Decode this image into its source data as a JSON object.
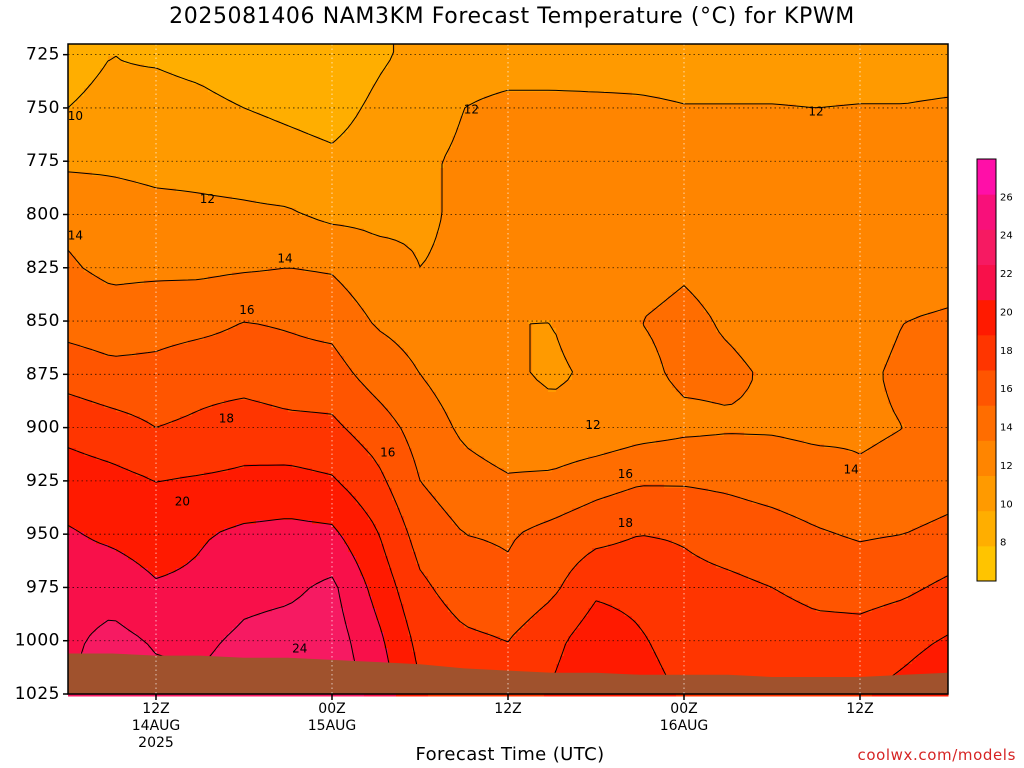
{
  "page": {
    "title": "2025081406 NAM3KM Forecast Temperature (°C) for KPWM",
    "watermark": "coolwx.com/models"
  },
  "chart_data": {
    "type": "heatmap",
    "title": "2025081406 NAM3KM Forecast Temperature (°C) for KPWM",
    "xlabel": "Forecast Time (UTC)",
    "ylabel": "",
    "y_scale": "pressure (hPa), inverted",
    "ylim": [
      1025,
      720
    ],
    "yticks": [
      725,
      750,
      775,
      800,
      825,
      850,
      875,
      900,
      925,
      950,
      975,
      1000,
      1025
    ],
    "x_unit": "forecast hour from 2025-08-14 06Z",
    "xlim": [
      0,
      60
    ],
    "xticks": [
      {
        "hour": 6,
        "lines": [
          "12Z",
          "14AUG",
          "2025"
        ]
      },
      {
        "hour": 18,
        "lines": [
          "00Z",
          "15AUG"
        ]
      },
      {
        "hour": 30,
        "lines": [
          "12Z"
        ]
      },
      {
        "hour": 42,
        "lines": [
          "00Z",
          "16AUG"
        ]
      },
      {
        "hour": 54,
        "lines": [
          "12Z"
        ]
      }
    ],
    "grid": true,
    "colorbar": {
      "levels": [
        6,
        8,
        10,
        12,
        14,
        16,
        18,
        20,
        22,
        24,
        26,
        28
      ],
      "labels": [
        8,
        10,
        12,
        14,
        16,
        18,
        20,
        22,
        24,
        26
      ],
      "colors": [
        "#ffc400",
        "#ffae00",
        "#ff9a00",
        "#ff8500",
        "#ff6d00",
        "#ff5500",
        "#ff3500",
        "#ff1a00",
        "#f8104a",
        "#f61a62",
        "#f8107a",
        "#ff0fa8"
      ]
    },
    "hours": [
      0,
      3,
      6,
      9,
      12,
      15,
      18,
      21,
      24,
      27,
      30,
      33,
      36,
      39,
      42,
      45,
      48,
      51,
      54,
      57,
      60
    ],
    "pressure_levels": [
      725,
      750,
      775,
      800,
      825,
      850,
      875,
      900,
      925,
      950,
      975,
      1000,
      1025
    ],
    "temperature_c": [
      [
        9.6,
        10,
        9.8,
        9.5,
        9,
        8.6,
        8.2,
        9.6,
        10.6,
        11.2,
        11.2,
        10.8,
        10.6,
        10.8,
        10.8,
        10.8,
        10.8,
        10.8,
        10.8,
        10.8,
        10.8
      ],
      [
        10,
        10.3,
        10.6,
        10.4,
        10,
        9.6,
        9.2,
        10.4,
        11.4,
        12,
        12.4,
        12.6,
        12.6,
        12.4,
        12.1,
        12.1,
        12.1,
        12,
        12.1,
        12.1,
        12.3
      ],
      [
        11.6,
        11.6,
        11.4,
        11.4,
        11.2,
        10.8,
        10.4,
        11,
        11.8,
        12.2,
        12.8,
        13.2,
        13,
        12.8,
        12.6,
        12.6,
        12.8,
        12.9,
        12.9,
        12.9,
        12.9
      ],
      [
        13.6,
        13,
        12.6,
        12.4,
        12.3,
        12.2,
        11.6,
        11.6,
        11.8,
        12.2,
        12.6,
        12.6,
        12.8,
        13,
        12.8,
        12.8,
        13.2,
        13.2,
        13.2,
        13.2,
        13.4
      ],
      [
        14.2,
        13.6,
        13.6,
        13.6,
        13.8,
        14,
        13.8,
        12.6,
        12,
        12.2,
        12.4,
        12.6,
        12.8,
        13.4,
        13.8,
        13.4,
        13,
        13,
        13,
        13.2,
        13.4
      ],
      [
        15.2,
        14.8,
        15.2,
        15.4,
        16,
        15.8,
        15.4,
        13.8,
        13.2,
        12.4,
        12,
        12,
        12.6,
        14,
        14.4,
        13.8,
        13.4,
        13.4,
        13.6,
        14,
        14.2
      ],
      [
        17.2,
        16.6,
        16.6,
        17.2,
        17.2,
        16.8,
        16.8,
        15.2,
        14,
        12.8,
        12.2,
        11.8,
        12.2,
        13.6,
        14.3,
        14.3,
        13.8,
        13.8,
        13.8,
        14.2,
        14.4
      ],
      [
        19.4,
        18.8,
        18,
        18.4,
        19,
        18.6,
        18.4,
        17,
        15.2,
        13.6,
        12.8,
        12.4,
        12.6,
        13.2,
        13.6,
        13.8,
        13.8,
        13.6,
        13.8,
        14,
        14.4
      ],
      [
        21,
        20.6,
        20,
        20.2,
        20.4,
        20.6,
        20.2,
        18.6,
        16,
        14.8,
        14.2,
        14.4,
        15.2,
        15.8,
        15.8,
        15.6,
        15.2,
        14.8,
        14.2,
        14.4,
        15
      ],
      [
        22.2,
        21.6,
        21,
        21.8,
        22.4,
        22.6,
        22.4,
        20.2,
        17.2,
        16,
        15.8,
        16.6,
        17.4,
        18,
        17.8,
        17.2,
        16.8,
        16.2,
        15.8,
        16,
        16.6
      ],
      [
        23,
        23.2,
        22.2,
        22.4,
        23.4,
        23.6,
        24.4,
        21.4,
        18.4,
        17,
        16.4,
        17.6,
        19.6,
        19.4,
        18.6,
        18.4,
        18,
        17.4,
        17.2,
        17.6,
        18.4
      ],
      [
        23.6,
        24.6,
        23.8,
        23.6,
        24.4,
        24.8,
        25,
        22.6,
        19.4,
        18.4,
        18,
        19.4,
        21.2,
        20.2,
        19.2,
        19.2,
        19.2,
        18.8,
        18.8,
        19.4,
        20.2
      ],
      [
        24,
        25,
        24.6,
        24.4,
        25,
        25.4,
        25.4,
        23.4,
        20.2,
        19.2,
        18.8,
        20.2,
        21.8,
        20.8,
        19.8,
        19.6,
        19.8,
        19.6,
        19.8,
        20.6,
        21.6
      ]
    ],
    "contour_labels": [
      {
        "hour": 0.5,
        "p": 754,
        "text": "10"
      },
      {
        "hour": 9.5,
        "p": 793,
        "text": "12"
      },
      {
        "hour": 0.5,
        "p": 810,
        "text": "14"
      },
      {
        "hour": 14.8,
        "p": 821,
        "text": "14"
      },
      {
        "hour": 12.2,
        "p": 845,
        "text": "16"
      },
      {
        "hour": 10.8,
        "p": 896,
        "text": "18"
      },
      {
        "hour": 7.8,
        "p": 935,
        "text": "20"
      },
      {
        "hour": 15.8,
        "p": 1004,
        "text": "24"
      },
      {
        "hour": 21.8,
        "p": 912,
        "text": "16"
      },
      {
        "hour": 35.8,
        "p": 899,
        "text": "12"
      },
      {
        "hour": 27.5,
        "p": 751,
        "text": "12"
      },
      {
        "hour": 51,
        "p": 752,
        "text": "12"
      },
      {
        "hour": 38,
        "p": 922,
        "text": "16"
      },
      {
        "hour": 38,
        "p": 945,
        "text": "18"
      },
      {
        "hour": 53.4,
        "p": 920,
        "text": "14"
      }
    ],
    "terrain": {
      "color": "#a0522d",
      "surface_pressure_hpa": [
        1006,
        1006,
        1007,
        1007,
        1008,
        1008,
        1009,
        1010,
        1011,
        1013,
        1014,
        1015,
        1015,
        1016,
        1016,
        1016,
        1017,
        1017,
        1017,
        1016,
        1015
      ]
    }
  }
}
